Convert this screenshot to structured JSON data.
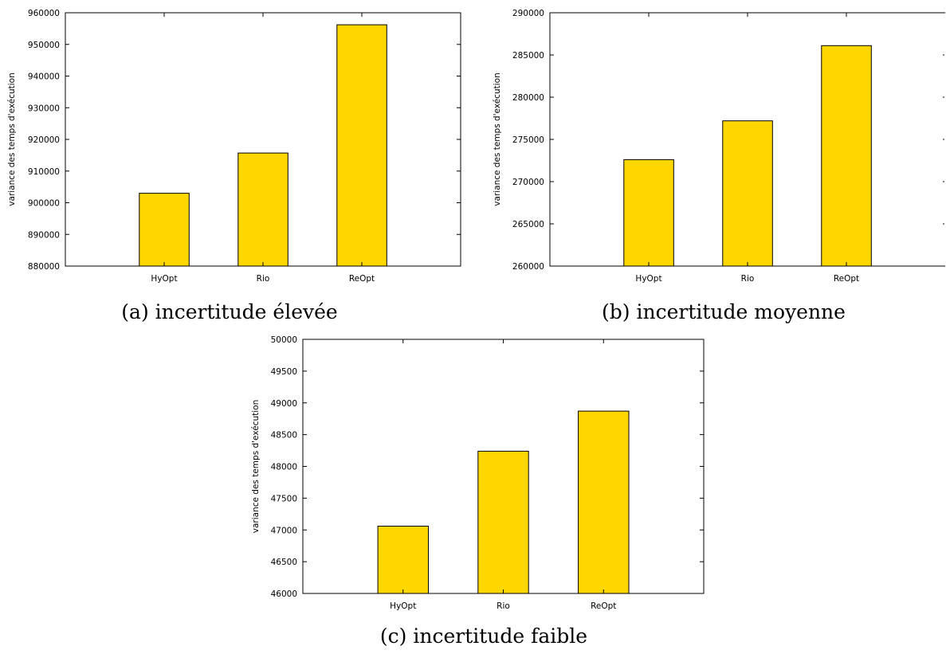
{
  "colors": {
    "bar_fill": "#FFD700",
    "bar_stroke": "#000000",
    "axis": "#000000"
  },
  "chart_data": [
    {
      "type": "bar",
      "caption": "(a) incertitude élevée",
      "categories": [
        "HyOpt",
        "Rio",
        "ReOpt"
      ],
      "values": [
        903000,
        915700,
        956200
      ],
      "ylabel": "variance des temps d'exécution",
      "ylim": [
        880000,
        960000
      ],
      "yticks": [
        880000,
        890000,
        900000,
        910000,
        920000,
        930000,
        940000,
        950000,
        960000
      ],
      "grid": false,
      "legend": "none"
    },
    {
      "type": "bar",
      "caption": "(b) incertitude moyenne",
      "categories": [
        "HyOpt",
        "Rio",
        "ReOpt"
      ],
      "values": [
        272600,
        277200,
        286100
      ],
      "ylabel": "variance des temps d'exécution",
      "ylim": [
        260000,
        290000
      ],
      "yticks": [
        260000,
        265000,
        270000,
        275000,
        280000,
        285000,
        290000
      ],
      "grid": false,
      "legend": "none"
    },
    {
      "type": "bar",
      "caption": "(c) incertitude faible",
      "categories": [
        "HyOpt",
        "Rio",
        "ReOpt"
      ],
      "values": [
        47060,
        48240,
        48870
      ],
      "ylabel": "variance des temps d'exécution",
      "ylim": [
        46000,
        50000
      ],
      "yticks": [
        46000,
        46500,
        47000,
        47500,
        48000,
        48500,
        49000,
        49500,
        50000
      ],
      "grid": false,
      "legend": "none"
    }
  ]
}
